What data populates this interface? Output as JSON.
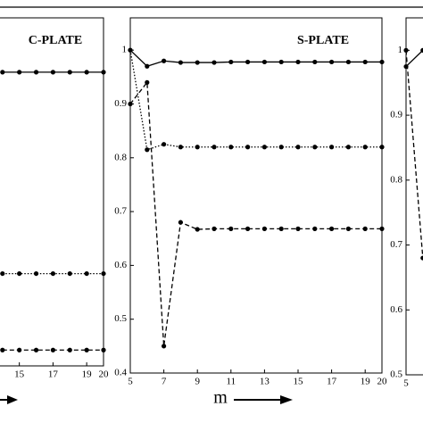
{
  "chart_data": [
    {
      "type": "line",
      "title": "C-PLATE",
      "x": [
        14,
        15,
        16,
        17,
        18,
        19,
        20
      ],
      "xlim": [
        5,
        20
      ],
      "xticks": [
        15,
        17,
        19,
        20
      ],
      "ylim": [
        0.4,
        1.06
      ],
      "marker": "o",
      "series": [
        {
          "color": "#000000",
          "style": "solid",
          "values": [
            0.957,
            0.957,
            0.957,
            0.957,
            0.957,
            0.957,
            0.957
          ]
        },
        {
          "color": "#000000",
          "style": "dotted",
          "values": [
            0.575,
            0.575,
            0.575,
            0.575,
            0.575,
            0.575,
            0.575
          ]
        },
        {
          "color": "#000000",
          "style": "dashed",
          "values": [
            0.43,
            0.43,
            0.43,
            0.43,
            0.43,
            0.43,
            0.43
          ]
        }
      ]
    },
    {
      "type": "line",
      "title": "S-PLATE",
      "xlabel": "m",
      "x": [
        5,
        6,
        7,
        8,
        9,
        10,
        11,
        12,
        13,
        14,
        15,
        16,
        17,
        18,
        19,
        20
      ],
      "xlim": [
        5,
        20
      ],
      "xticks": [
        5,
        7,
        9,
        11,
        13,
        15,
        17,
        19,
        20
      ],
      "ylim": [
        0.4,
        1.06
      ],
      "yticks": [
        0.4,
        0.5,
        0.6,
        0.7,
        0.8,
        0.9,
        1
      ],
      "marker": "o",
      "series": [
        {
          "color": "#000000",
          "style": "solid",
          "values": [
            1.0,
            0.97,
            0.98,
            0.977,
            0.977,
            0.977,
            0.978,
            0.978,
            0.978,
            0.978,
            0.978,
            0.978,
            0.978,
            0.978,
            0.978,
            0.978
          ]
        },
        {
          "color": "#000000",
          "style": "dotted",
          "values": [
            1.0,
            0.815,
            0.825,
            0.82,
            0.82,
            0.82,
            0.82,
            0.82,
            0.82,
            0.82,
            0.82,
            0.82,
            0.82,
            0.82,
            0.82,
            0.82
          ]
        },
        {
          "color": "#000000",
          "style": "dashed",
          "values": [
            0.9,
            0.94,
            0.45,
            0.68,
            0.667,
            0.668,
            0.668,
            0.668,
            0.668,
            0.668,
            0.668,
            0.668,
            0.668,
            0.668,
            0.668,
            0.668
          ]
        }
      ]
    },
    {
      "type": "line",
      "x": [
        5,
        6
      ],
      "xlim": [
        5,
        20
      ],
      "xticks": [
        5
      ],
      "ylim": [
        0.5,
        1.05
      ],
      "yticks": [
        0.5,
        0.6,
        0.7,
        0.8,
        0.9,
        1
      ],
      "marker": "o",
      "series": [
        {
          "color": "#000000",
          "style": "solid",
          "values": [
            0.975,
            1.0
          ]
        },
        {
          "color": "#000000",
          "style": "dashed",
          "values": [
            1.0,
            0.68
          ]
        }
      ]
    }
  ]
}
